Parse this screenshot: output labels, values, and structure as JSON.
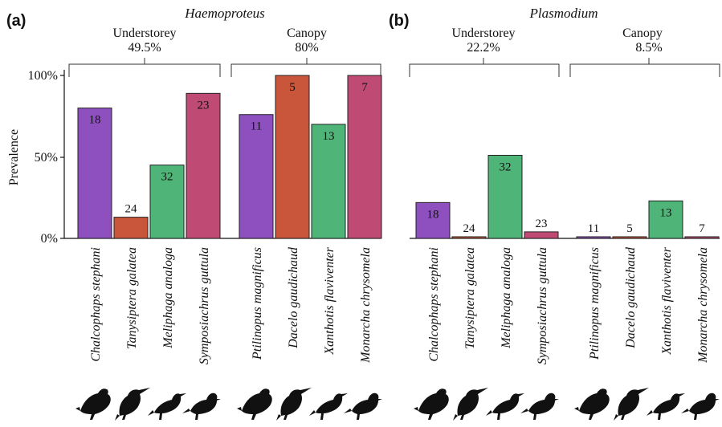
{
  "chart_data": [
    {
      "type": "bar",
      "panel": "(a)",
      "title": "Haemoproteus",
      "ylabel": "Prevalence",
      "yticks": [
        "0%",
        "50%",
        "100%"
      ],
      "ylim": [
        0,
        100
      ],
      "groups": [
        {
          "name": "Understorey",
          "overall": "49.5%",
          "categories": [
            "Chalcophaps stephani",
            "Tanysiptera galatea",
            "Meliphaga analoga",
            "Symposiachrus guttula"
          ],
          "values": [
            80,
            13,
            45,
            89
          ],
          "counts": [
            "18",
            "24",
            "32",
            "23"
          ],
          "colors": [
            "#8e4fbf",
            "#c9553a",
            "#4fb478",
            "#bf4b74"
          ]
        },
        {
          "name": "Canopy",
          "overall": "80%",
          "categories": [
            "Ptilinopus magnificus",
            "Dacelo gaudichaud",
            "Xanthotis flaviventer",
            "Monarcha chrysomela"
          ],
          "values": [
            76,
            100,
            70,
            100
          ],
          "counts": [
            "11",
            "5",
            "13",
            "7"
          ],
          "colors": [
            "#8e4fbf",
            "#c9553a",
            "#4fb478",
            "#bf4b74"
          ]
        }
      ]
    },
    {
      "type": "bar",
      "panel": "(b)",
      "title": "Plasmodium",
      "ylim": [
        0,
        100
      ],
      "groups": [
        {
          "name": "Understorey",
          "overall": "22.2%",
          "categories": [
            "Chalcophaps stephani",
            "Tanysiptera galatea",
            "Meliphaga analoga",
            "Symposiachrus guttula"
          ],
          "values": [
            22,
            1,
            51,
            4
          ],
          "counts": [
            "18",
            "24",
            "32",
            "23"
          ],
          "colors": [
            "#8e4fbf",
            "#c9553a",
            "#4fb478",
            "#bf4b74"
          ]
        },
        {
          "name": "Canopy",
          "overall": "8.5%",
          "categories": [
            "Ptilinopus magnificus",
            "Dacelo gaudichaud",
            "Xanthotis flaviventer",
            "Monarcha chrysomela"
          ],
          "values": [
            1,
            1,
            23,
            1
          ],
          "counts": [
            "11",
            "5",
            "13",
            "7"
          ],
          "colors": [
            "#8e4fbf",
            "#c9553a",
            "#4fb478",
            "#bf4b74"
          ]
        }
      ]
    }
  ],
  "bird_icons": [
    "dove-silhouette-icon",
    "kingfisher-silhouette-icon",
    "honeyeater-silhouette-icon",
    "monarch-silhouette-icon"
  ]
}
